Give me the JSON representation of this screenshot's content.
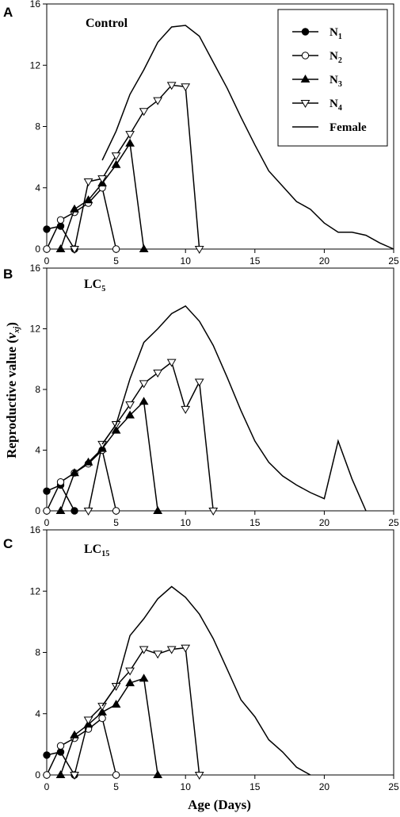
{
  "chart_data": [
    {
      "type": "line",
      "panel": "A",
      "label": "Control",
      "label_sub": "",
      "xlim": [
        0,
        25
      ],
      "ylim": [
        0,
        16
      ],
      "xticks": [
        0,
        5,
        10,
        15,
        20,
        25
      ],
      "yticks": [
        0,
        4,
        8,
        12,
        16
      ],
      "legend": {
        "placement": "top-right",
        "entries": [
          {
            "name": "N",
            "sub": "1",
            "marker": "filled-circle"
          },
          {
            "name": "N",
            "sub": "2",
            "marker": "open-circle"
          },
          {
            "name": "N",
            "sub": "3",
            "marker": "filled-triangle-up"
          },
          {
            "name": "N",
            "sub": "4",
            "marker": "open-triangle-down"
          },
          {
            "name": "Female",
            "sub": "",
            "marker": "none"
          }
        ]
      },
      "series": [
        {
          "legend_index": 0,
          "marker": "filled-circle",
          "x": [
            0,
            1,
            2
          ],
          "y": [
            1.3,
            1.5,
            0
          ]
        },
        {
          "legend_index": 1,
          "marker": "open-circle",
          "x": [
            0,
            1,
            2,
            3,
            4,
            5
          ],
          "y": [
            0,
            1.9,
            2.4,
            3.0,
            4.0,
            0
          ]
        },
        {
          "legend_index": 2,
          "marker": "filled-triangle-up",
          "x": [
            1,
            2,
            3,
            4,
            5,
            6,
            7
          ],
          "y": [
            0,
            2.6,
            3.2,
            4.3,
            5.5,
            6.9,
            0
          ]
        },
        {
          "legend_index": 3,
          "marker": "open-triangle-down",
          "x": [
            2,
            3,
            4,
            5,
            6,
            7,
            8,
            9,
            10,
            11
          ],
          "y": [
            0,
            4.4,
            4.6,
            6.1,
            7.5,
            9.0,
            9.7,
            10.7,
            10.6,
            0
          ]
        },
        {
          "legend_index": 4,
          "marker": "none",
          "x": [
            4,
            5,
            6,
            7,
            8,
            9,
            10,
            11,
            12,
            13,
            14,
            15,
            16,
            17,
            18,
            19,
            20,
            21,
            22,
            23,
            24,
            25
          ],
          "y": [
            5.8,
            7.7,
            10.1,
            11.7,
            13.5,
            14.5,
            14.6,
            13.9,
            12.2,
            10.5,
            8.6,
            6.8,
            5.1,
            4.1,
            3.1,
            2.6,
            1.7,
            1.1,
            1.1,
            0.9,
            0.4,
            0
          ]
        }
      ]
    },
    {
      "type": "line",
      "panel": "B",
      "label": "LC",
      "label_sub": "5",
      "xlim": [
        0,
        25
      ],
      "ylim": [
        0,
        16
      ],
      "xticks": [
        0,
        5,
        10,
        15,
        20,
        25
      ],
      "yticks": [
        0,
        4,
        8,
        12,
        16
      ],
      "series": [
        {
          "marker": "filled-circle",
          "x": [
            0,
            1,
            2
          ],
          "y": [
            1.3,
            1.7,
            0
          ]
        },
        {
          "marker": "open-circle",
          "x": [
            0,
            1,
            2,
            3,
            4,
            5
          ],
          "y": [
            0,
            1.9,
            2.5,
            3.1,
            4.0,
            0
          ]
        },
        {
          "marker": "filled-triangle-up",
          "x": [
            1,
            2,
            3,
            4,
            5,
            6,
            7,
            8
          ],
          "y": [
            0,
            2.5,
            3.2,
            4.1,
            5.3,
            6.3,
            7.2,
            0
          ]
        },
        {
          "marker": "open-triangle-down",
          "x": [
            3,
            4,
            5,
            6,
            7,
            8,
            9,
            10,
            11,
            12
          ],
          "y": [
            0,
            4.4,
            5.7,
            7.0,
            8.4,
            9.1,
            9.8,
            6.7,
            8.5,
            0
          ]
        },
        {
          "marker": "none",
          "x": [
            4,
            5,
            6,
            7,
            8,
            9,
            10,
            11,
            12,
            13,
            14,
            15,
            16,
            17,
            18,
            19,
            20,
            21,
            22,
            23
          ],
          "y": [
            4.4,
            5.7,
            8.7,
            11.1,
            12.0,
            13.0,
            13.5,
            12.5,
            10.9,
            8.8,
            6.6,
            4.6,
            3.2,
            2.3,
            1.7,
            1.2,
            0.8,
            4.6,
            2.1,
            0
          ]
        }
      ]
    },
    {
      "type": "line",
      "panel": "C",
      "label": "LC",
      "label_sub": "15",
      "xlim": [
        0,
        25
      ],
      "ylim": [
        0,
        16
      ],
      "xticks": [
        0,
        5,
        10,
        15,
        20,
        25
      ],
      "yticks": [
        0,
        4,
        8,
        12,
        16
      ],
      "series": [
        {
          "marker": "filled-circle",
          "x": [
            0,
            1,
            2
          ],
          "y": [
            1.3,
            1.5,
            0
          ]
        },
        {
          "marker": "open-circle",
          "x": [
            0,
            1,
            2,
            3,
            4,
            5
          ],
          "y": [
            0,
            1.9,
            2.4,
            3.0,
            3.7,
            0
          ]
        },
        {
          "marker": "filled-triangle-up",
          "x": [
            1,
            2,
            3,
            4,
            5,
            6,
            7,
            8
          ],
          "y": [
            0,
            2.6,
            3.3,
            4.1,
            4.6,
            6.0,
            6.3,
            0
          ]
        },
        {
          "marker": "open-triangle-down",
          "x": [
            2,
            3,
            4,
            5,
            6,
            7,
            8,
            9,
            10,
            11
          ],
          "y": [
            0,
            3.6,
            4.5,
            5.8,
            6.8,
            8.2,
            7.9,
            8.2,
            8.3,
            0
          ]
        },
        {
          "marker": "none",
          "x": [
            4,
            5,
            6,
            7,
            8,
            9,
            10,
            11,
            12,
            13,
            14,
            15,
            16,
            17,
            18,
            19
          ],
          "y": [
            4.5,
            5.8,
            9.1,
            10.2,
            11.5,
            12.3,
            11.6,
            10.5,
            8.9,
            6.9,
            4.9,
            3.8,
            2.3,
            1.5,
            0.5,
            0
          ]
        }
      ]
    }
  ],
  "axes": {
    "ylabel": "Reproductive value (",
    "ylabel_var": "v",
    "ylabel_sub": "xj",
    "ylabel_end": ")",
    "xlabel": "Age (Days)"
  },
  "colors": {
    "line": "#000000",
    "background": "#ffffff"
  }
}
